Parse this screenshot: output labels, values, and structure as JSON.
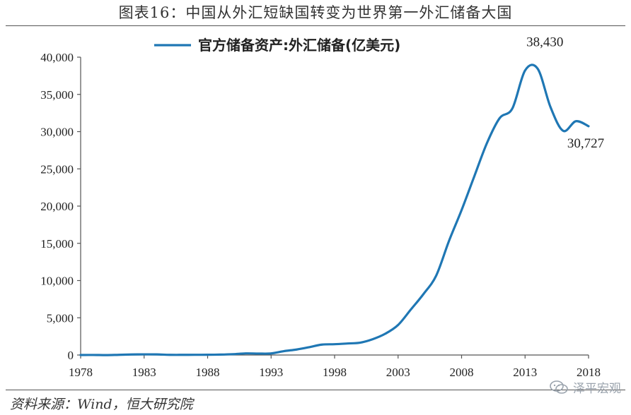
{
  "title": "图表16：中国从外汇短缺国转变为世界第一外汇储备大国",
  "source": "资料来源：Wind，恒大研究院",
  "watermark": "泽平宏观",
  "colors": {
    "series": "#1f77b4",
    "axis": "#555555",
    "text": "#222222"
  },
  "chart_data": {
    "type": "line",
    "legend_position": "top-center",
    "grid": false,
    "series": [
      {
        "name": "官方储备资产:外汇储备(亿美元)",
        "x": [
          1978,
          1979,
          1980,
          1981,
          1982,
          1983,
          1984,
          1985,
          1986,
          1987,
          1988,
          1989,
          1990,
          1991,
          1992,
          1993,
          1994,
          1995,
          1996,
          1997,
          1998,
          1999,
          2000,
          2001,
          2002,
          2003,
          2004,
          2005,
          2006,
          2007,
          2008,
          2009,
          2010,
          2011,
          2012,
          2013,
          2014,
          2015,
          2016,
          2017,
          2018
        ],
        "values": [
          2,
          8,
          -13,
          27,
          70,
          89,
          82,
          26,
          21,
          29,
          34,
          56,
          111,
          217,
          194,
          212,
          516,
          736,
          1050,
          1399,
          1450,
          1547,
          1656,
          2122,
          2864,
          4033,
          6099,
          8189,
          10663,
          15282,
          19460,
          23992,
          28473,
          31812,
          33116,
          38213,
          38430,
          33304,
          30105,
          31399,
          30727
        ]
      }
    ],
    "xlim": [
      1978,
      2018
    ],
    "ylim": [
      0,
      40000
    ],
    "x_ticks": [
      1978,
      1983,
      1988,
      1993,
      1998,
      2003,
      2008,
      2013,
      2018
    ],
    "y_ticks": [
      0,
      5000,
      10000,
      15000,
      20000,
      25000,
      30000,
      35000,
      40000
    ],
    "y_tick_labels": [
      "0",
      "5,000",
      "10,000",
      "15,000",
      "20,000",
      "25,000",
      "30,000",
      "35,000",
      "40,000"
    ],
    "annotations": [
      {
        "text": "38,430",
        "x": 2014,
        "y": 38430
      },
      {
        "text": "30,727",
        "x": 2018,
        "y": 30727
      }
    ]
  }
}
